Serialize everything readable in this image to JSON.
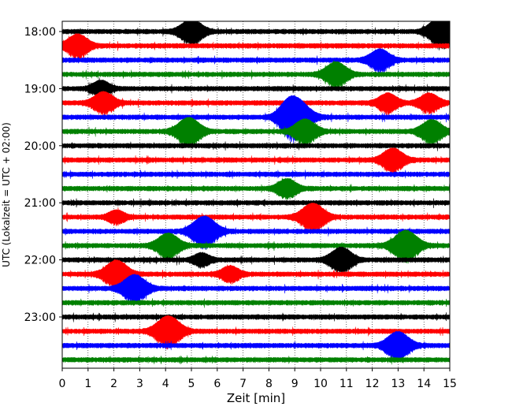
{
  "chart_data": {
    "type": "line",
    "title": "",
    "xlabel": "Zeit  [min]",
    "ylabel": "UTC (Lokalzeit = UTC + 02:00)",
    "xlim": [
      0,
      15
    ],
    "x_ticks": [
      0,
      1,
      2,
      3,
      4,
      5,
      6,
      7,
      8,
      9,
      10,
      11,
      12,
      13,
      14,
      15
    ],
    "x_tick_labels": [
      "0",
      "1",
      "2",
      "3",
      "4",
      "5",
      "6",
      "7",
      "8",
      "9",
      "10",
      "11",
      "12",
      "13",
      "14",
      "15"
    ],
    "y_tick_labels": [
      {
        "label": "18:00",
        "trace": 0
      },
      {
        "label": "19:00",
        "trace": 4
      },
      {
        "label": "20:00",
        "trace": 8
      },
      {
        "label": "21:00",
        "trace": 12
      },
      {
        "label": "22:00",
        "trace": 16
      },
      {
        "label": "23:00",
        "trace": 20
      }
    ],
    "grid": "x-dotted",
    "trace_colors": [
      "#000000",
      "#ff0000",
      "#0000ff",
      "#008000"
    ],
    "traces": [
      {
        "start": "18:00",
        "events": [
          {
            "t": 5.0,
            "amp": 1.6
          },
          {
            "t": 14.5,
            "amp": 1.3
          },
          {
            "t": 14.9,
            "amp": 1.2
          }
        ]
      },
      {
        "start": "18:15",
        "events": [
          {
            "t": 0.6,
            "amp": 1.5
          }
        ]
      },
      {
        "start": "18:30",
        "events": [
          {
            "t": 12.3,
            "amp": 1.4
          }
        ]
      },
      {
        "start": "18:45",
        "events": [
          {
            "t": 10.6,
            "amp": 1.6
          }
        ]
      },
      {
        "start": "19:00",
        "events": [
          {
            "t": 1.5,
            "amp": 1.0
          }
        ]
      },
      {
        "start": "19:15",
        "events": [
          {
            "t": 1.6,
            "amp": 1.4
          },
          {
            "t": 12.6,
            "amp": 1.2
          },
          {
            "t": 14.2,
            "amp": 1.2
          }
        ]
      },
      {
        "start": "19:30",
        "events": [
          {
            "t": 8.7,
            "amp": 1.2
          },
          {
            "t": 9.1,
            "amp": 2.2
          }
        ]
      },
      {
        "start": "19:45",
        "events": [
          {
            "t": 4.9,
            "amp": 1.8
          },
          {
            "t": 9.4,
            "amp": 1.6
          },
          {
            "t": 14.3,
            "amp": 1.5
          }
        ]
      },
      {
        "start": "20:00",
        "events": []
      },
      {
        "start": "20:15",
        "events": [
          {
            "t": 12.8,
            "amp": 1.5
          }
        ]
      },
      {
        "start": "20:30",
        "events": []
      },
      {
        "start": "20:45",
        "events": [
          {
            "t": 8.7,
            "amp": 1.2
          }
        ]
      },
      {
        "start": "21:00",
        "events": []
      },
      {
        "start": "21:15",
        "events": [
          {
            "t": 2.1,
            "amp": 0.8
          },
          {
            "t": 9.7,
            "amp": 1.8
          }
        ]
      },
      {
        "start": "21:30",
        "events": [
          {
            "t": 5.5,
            "amp": 2.0
          }
        ]
      },
      {
        "start": "21:45",
        "events": [
          {
            "t": 4.1,
            "amp": 1.6
          },
          {
            "t": 13.3,
            "amp": 2.0
          }
        ]
      },
      {
        "start": "22:00",
        "events": [
          {
            "t": 5.4,
            "amp": 0.8
          },
          {
            "t": 10.8,
            "amp": 1.6
          }
        ]
      },
      {
        "start": "22:15",
        "events": [
          {
            "t": 2.1,
            "amp": 1.8
          },
          {
            "t": 6.5,
            "amp": 1.0
          }
        ]
      },
      {
        "start": "22:30",
        "events": [
          {
            "t": 2.8,
            "amp": 1.8
          }
        ]
      },
      {
        "start": "22:45",
        "events": []
      },
      {
        "start": "23:00",
        "events": []
      },
      {
        "start": "23:15",
        "events": [
          {
            "t": 4.1,
            "amp": 2.0
          }
        ]
      },
      {
        "start": "23:30",
        "events": [
          {
            "t": 13.0,
            "amp": 1.8
          }
        ]
      },
      {
        "start": "23:45",
        "events": []
      }
    ]
  }
}
